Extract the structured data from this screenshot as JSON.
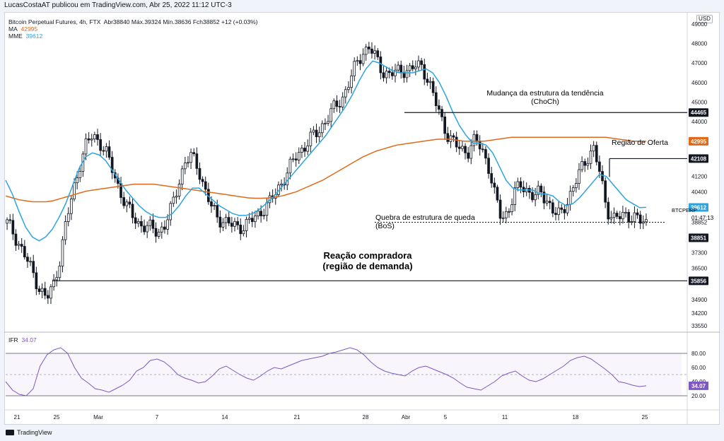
{
  "header": {
    "publisher_line": "LucasCostaAT publicou em TradingView.com, Abr 25, 2022 11:12 UTC-3"
  },
  "legend": {
    "symbol": "Bitcoin Perpetual Futures, 4h, FTX",
    "ohlc": "Abr38840  Máx.39324  Mín.38636  Fch38852  +12 (+0.03%)",
    "ma_label": "MA",
    "ma_value": "42995",
    "mme_label": "MME",
    "mme_value": "39612",
    "ifr_label": "IFR",
    "ifr_value": "34.07"
  },
  "currency": "USD",
  "colors": {
    "candle": "#131722",
    "ma": "#e06a1b",
    "mme": "#2da3e0",
    "ifr": "#7e57c2",
    "line": "#131722",
    "badge_dark": "#131722",
    "badge_ma": "#e06a1b",
    "badge_mme": "#2da3e0",
    "badge_ifr": "#7e57c2"
  },
  "chart_data": [
    {
      "type": "candlestick",
      "title": "",
      "y_ticks": [
        "49000",
        "48000",
        "47000",
        "46000",
        "45000",
        "44000",
        "43000",
        "41200",
        "40400",
        "39600",
        "38000",
        "37300",
        "36500",
        "35800",
        "34900",
        "34200",
        "33550"
      ],
      "x_ticks": [
        "21",
        "25",
        "Mar",
        "7",
        "14",
        "21",
        "28",
        "Abr",
        "5",
        "11",
        "18",
        "25"
      ],
      "ylim": [
        33300,
        49500
      ],
      "close_path": [
        38800,
        38300,
        37600,
        36900,
        36200,
        35400,
        34900,
        35600,
        37000,
        38900,
        40400,
        41800,
        42800,
        43300,
        43000,
        42400,
        41500,
        40600,
        39700,
        39200,
        38800,
        38600,
        38500,
        38400,
        38700,
        39600,
        40900,
        41900,
        42200,
        41700,
        40500,
        39600,
        39100,
        38900,
        38700,
        38600,
        38700,
        38900,
        39200,
        39600,
        39900,
        40500,
        41100,
        41700,
        42300,
        42700,
        43100,
        43400,
        43900,
        44400,
        44800,
        45300,
        46100,
        46900,
        47600,
        47800,
        47200,
        46600,
        46400,
        46500,
        46700,
        46600,
        46800,
        46900,
        46000,
        45000,
        44100,
        43200,
        42800,
        42600,
        42500,
        43000,
        42700,
        41800,
        40200,
        39100,
        39400,
        40300,
        40800,
        40500,
        40100,
        40400,
        40000,
        39300,
        39200,
        40000,
        40600,
        41500,
        42200,
        42600,
        41300,
        39600,
        39000,
        39100,
        39300,
        39100,
        38900,
        38852
      ],
      "series": [
        {
          "name": "MA",
          "values": [
            40200,
            40100,
            40000,
            39950,
            39900,
            39900,
            39900,
            39950,
            40050,
            40150,
            40250,
            40350,
            40450,
            40500,
            40550,
            40600,
            40650,
            40700,
            40750,
            40800,
            40800,
            40800,
            40800,
            40750,
            40700,
            40650,
            40600,
            40550,
            40500,
            40450,
            40400,
            40350,
            40300,
            40250,
            40200,
            40150,
            40100,
            40080,
            40080,
            40100,
            40150,
            40200,
            40300,
            40400,
            40550,
            40700,
            40850,
            41000,
            41200,
            41400,
            41600,
            41800,
            42000,
            42200,
            42350,
            42500,
            42600,
            42700,
            42800,
            42850,
            42900,
            42950,
            43000,
            43050,
            43100,
            43100,
            43100,
            43050,
            43000,
            43000,
            43000,
            43000,
            43050,
            43100,
            43150,
            43200,
            43200,
            43200,
            43200,
            43200,
            43200,
            43200,
            43200,
            43200,
            43200,
            43200,
            43200,
            43200,
            43200,
            43200,
            43150,
            43100,
            43050,
            43000,
            43000,
            42995
          ]
        },
        {
          "name": "MME",
          "values": [
            41000,
            40300,
            39400,
            38600,
            38100,
            37900,
            38100,
            38500,
            39100,
            39800,
            40700,
            41600,
            42200,
            42400,
            42300,
            42000,
            41500,
            41000,
            40500,
            40100,
            39700,
            39400,
            39200,
            39100,
            39100,
            39300,
            39700,
            40200,
            40600,
            40600,
            40300,
            40000,
            39700,
            39500,
            39300,
            39200,
            39200,
            39300,
            39500,
            39800,
            40100,
            40500,
            40900,
            41300,
            41700,
            42100,
            42500,
            42900,
            43300,
            43800,
            44300,
            44800,
            45400,
            46100,
            46700,
            47100,
            47000,
            46800,
            46600,
            46500,
            46500,
            46500,
            46600,
            46700,
            46500,
            46000,
            45300,
            44500,
            43800,
            43300,
            42900,
            42900,
            42800,
            42400,
            41700,
            41000,
            40600,
            40500,
            40500,
            40500,
            40300,
            40300,
            40200,
            39900,
            39700,
            39800,
            40100,
            40500,
            40900,
            41300,
            41200,
            40800,
            40400,
            40000,
            39800,
            39600,
            39612
          ]
        },
        {
          "name": "IFR",
          "values": [
            40,
            28,
            22,
            20,
            30,
            62,
            78,
            85,
            88,
            80,
            60,
            45,
            38,
            30,
            28,
            25,
            30,
            35,
            42,
            55,
            60,
            70,
            72,
            68,
            60,
            50,
            45,
            42,
            38,
            40,
            48,
            58,
            62,
            56,
            50,
            45,
            42,
            48,
            55,
            60,
            58,
            62,
            66,
            70,
            72,
            74,
            76,
            80,
            82,
            85,
            88,
            85,
            78,
            68,
            60,
            55,
            52,
            50,
            48,
            55,
            60,
            62,
            58,
            54,
            50,
            45,
            38,
            32,
            30,
            28,
            34,
            40,
            48,
            52,
            55,
            48,
            42,
            40,
            44,
            50,
            56,
            62,
            70,
            74,
            76,
            72,
            65,
            58,
            50,
            40,
            38,
            35,
            33,
            34.07
          ]
        }
      ],
      "ifr_ticks": [
        "80.00",
        "60.00",
        "40.00",
        "20.00"
      ],
      "ifr_range": [
        20,
        80
      ]
    }
  ],
  "levels": {
    "choch": {
      "value": "44465",
      "label_line1": "Mudança da estrutura da tendência",
      "label_line2": "(ChoCh)"
    },
    "oferta": {
      "value": "42108",
      "label": "Região de Oferta"
    },
    "bos": {
      "value": "38852",
      "label_line1": "Quebra de estrutura de queda",
      "label_line2": "(BoS)",
      "symbol_tag": "BTCPERP",
      "countdown": "01:47:13",
      "price_badge": "38851"
    },
    "demanda": {
      "value": "35856",
      "label_line1": "Reação compradora",
      "label_line2": "(região de demanda)"
    }
  },
  "badges": {
    "ma": "42995",
    "mme": "39612",
    "ifr": "34.07"
  },
  "branding": {
    "name": "TradingView"
  }
}
